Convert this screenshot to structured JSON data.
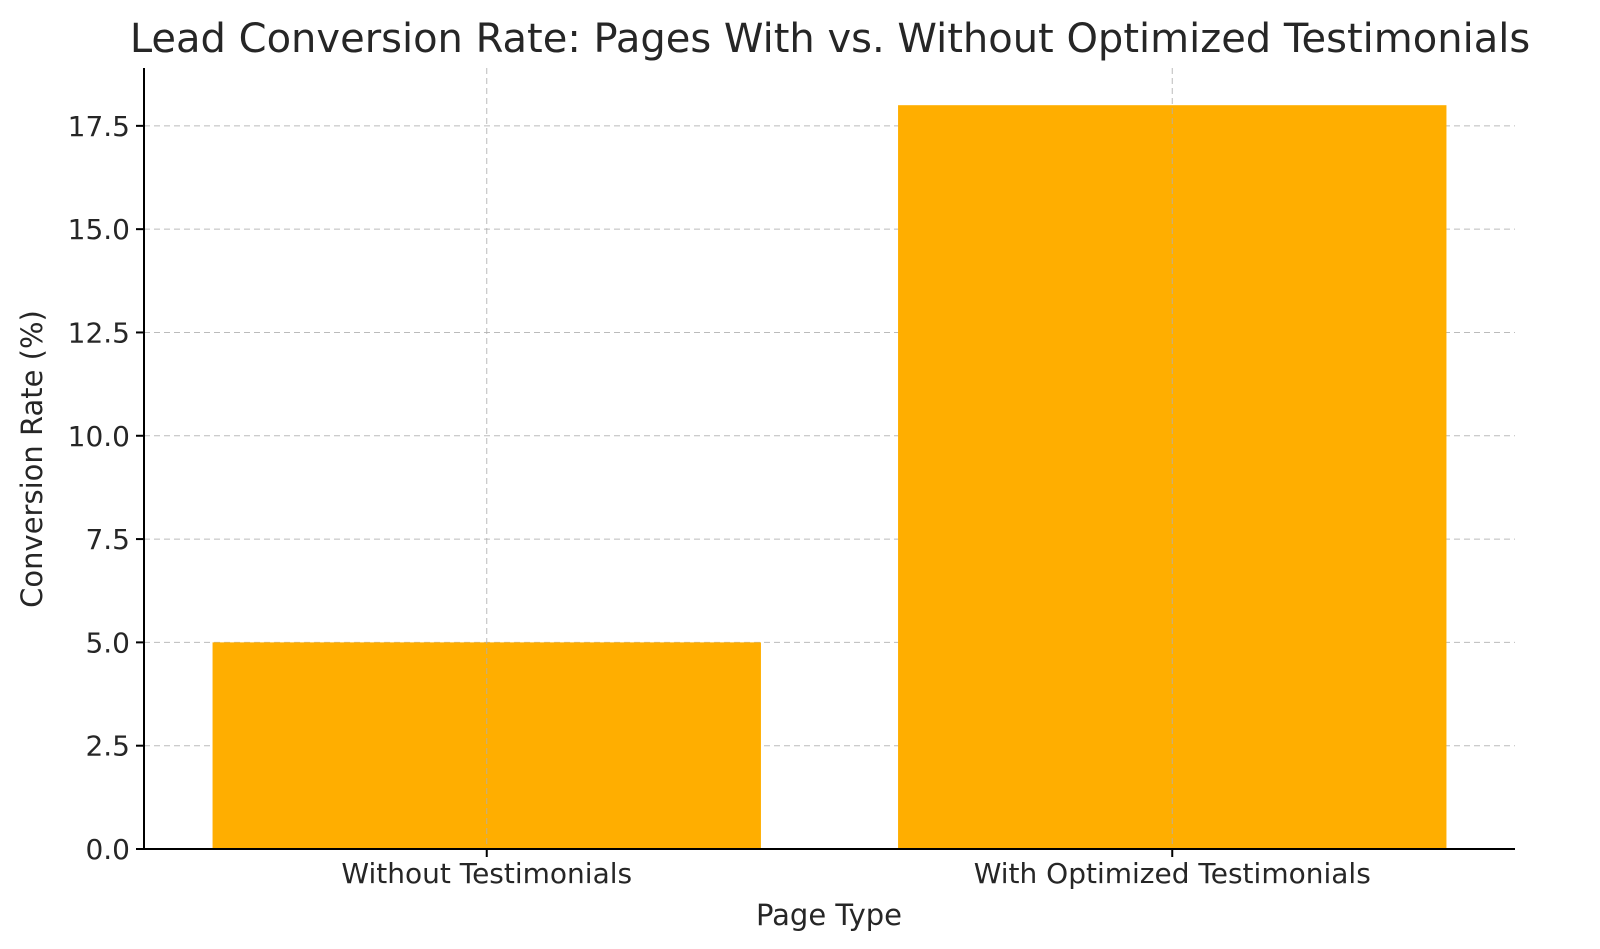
{
  "chart_data": {
    "type": "bar",
    "title": "Lead Conversion Rate: Pages With vs. Without Optimized Testimonials",
    "xlabel": "Page Type",
    "ylabel": "Conversion Rate (%)",
    "categories": [
      "Without Testimonials",
      "With Optimized Testimonials"
    ],
    "values": [
      5,
      18
    ],
    "ylim": [
      0,
      18.9
    ],
    "yticks": [
      0.0,
      2.5,
      5.0,
      7.5,
      10.0,
      12.5,
      15.0,
      17.5
    ],
    "ytick_labels": [
      "0.0",
      "2.5",
      "5.0",
      "7.5",
      "10.0",
      "12.5",
      "15.0",
      "17.5"
    ],
    "grid": true,
    "bar_color": "#FFAE00"
  }
}
